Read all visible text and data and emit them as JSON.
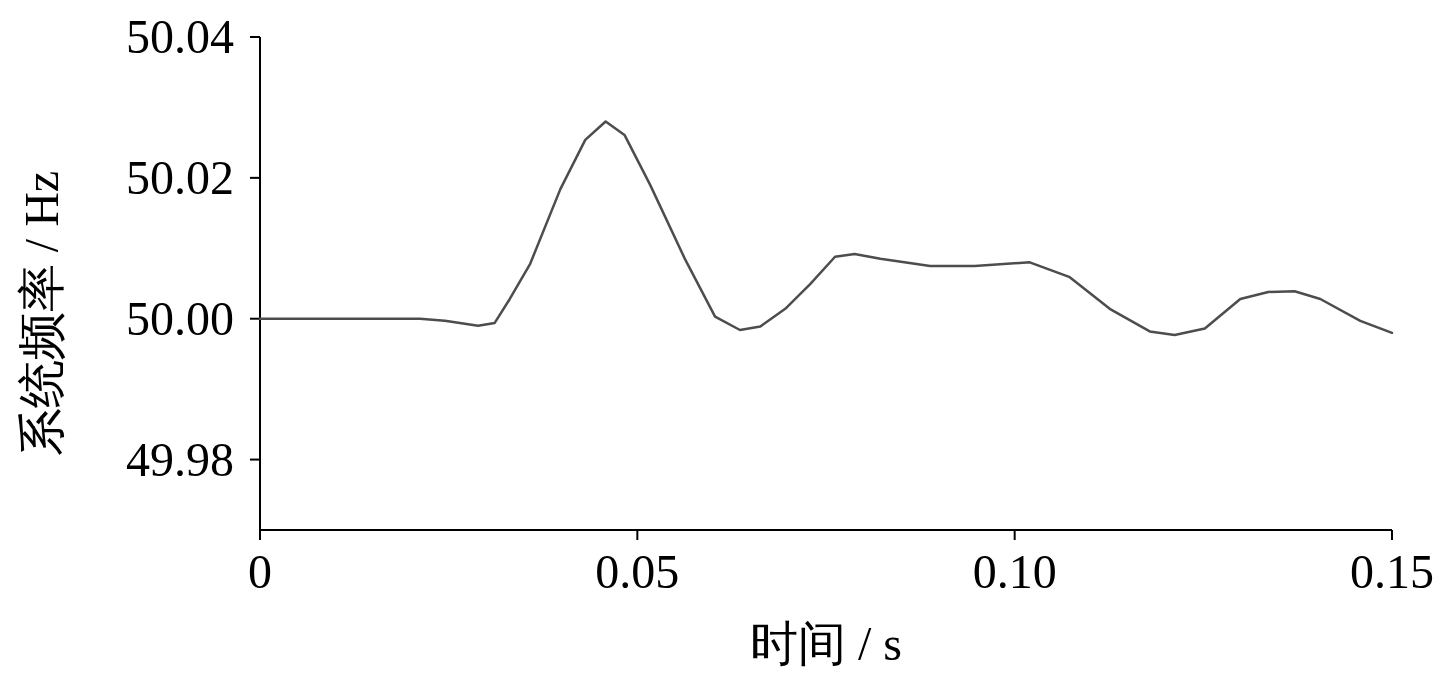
{
  "chart_data": {
    "type": "line",
    "xlabel": "时间 / s",
    "ylabel": "系统频率 / Hz",
    "xlim": [
      0,
      0.15
    ],
    "ylim": [
      49.97,
      50.04
    ],
    "xticks": [
      0,
      0.05,
      {
        "value": 0.1,
        "label": "0.10"
      },
      0.15
    ],
    "yticks": [
      49.98,
      {
        "value": 50.0,
        "label": "50.00"
      },
      50.02,
      50.04
    ],
    "series": [
      {
        "color": "#4d4d4d",
        "x": [
          0,
          0.0212,
          0.0245,
          0.0289,
          0.0311,
          0.0331,
          0.0358,
          0.0398,
          0.0431,
          0.0458,
          0.0483,
          0.0517,
          0.0563,
          0.0603,
          0.0636,
          0.0663,
          0.0696,
          0.0729,
          0.0762,
          0.0788,
          0.0822,
          0.0888,
          0.0947,
          0.102,
          0.1073,
          0.1126,
          0.1179,
          0.1212,
          0.1252,
          0.1299,
          0.1336,
          0.1371,
          0.1405,
          0.1458,
          0.15
        ],
        "values": [
          50.0,
          50.0,
          49.9997,
          49.999,
          49.9994,
          50.0028,
          50.0078,
          50.0184,
          50.0254,
          50.028,
          50.0261,
          50.019,
          50.0085,
          50.0003,
          49.9984,
          49.9989,
          50.0014,
          50.0049,
          50.0088,
          50.0092,
          50.0085,
          50.0075,
          50.0075,
          50.008,
          50.0059,
          50.0014,
          49.9982,
          49.9977,
          49.9986,
          50.0028,
          50.0038,
          50.0039,
          50.0028,
          49.9997,
          49.998
        ]
      }
    ]
  }
}
